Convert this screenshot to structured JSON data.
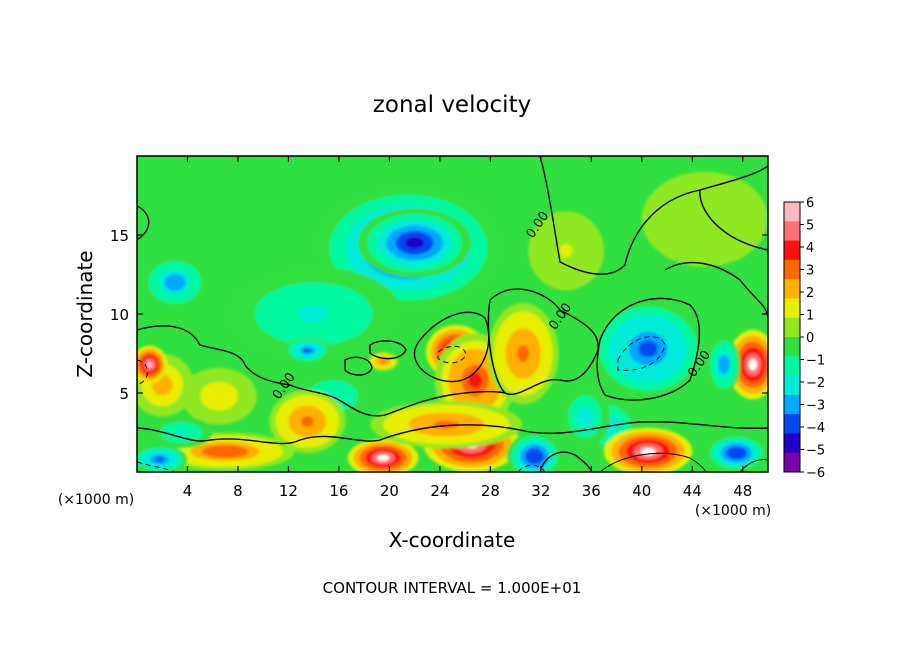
{
  "chart_data": {
    "type": "heatmap",
    "title": "zonal velocity",
    "xlabel": "X-coordinate",
    "ylabel": "Z-coordinate",
    "x_unit_left": "(×1000 m)",
    "x_unit_right": "(×1000 m)",
    "footer": "CONTOUR INTERVAL = 1.000E+01",
    "xlim": [
      0,
      50
    ],
    "ylim": [
      0,
      20
    ],
    "x_ticks": [
      4,
      8,
      12,
      16,
      20,
      24,
      28,
      32,
      36,
      40,
      44,
      48
    ],
    "y_ticks": [
      5,
      10,
      15
    ],
    "colorbar": {
      "min": -6,
      "max": 6,
      "ticks": [
        6,
        5,
        4,
        3,
        2,
        1,
        0,
        -1,
        -2,
        -3,
        -4,
        -5,
        -6
      ],
      "tick_labels": [
        "6",
        "5",
        "4",
        "3",
        "2",
        "1",
        "0",
        "−1",
        "−2",
        "−3",
        "−4",
        "−5",
        "−6"
      ],
      "colors": [
        "#7a00a8",
        "#1f00c8",
        "#0048f0",
        "#00a8ff",
        "#00ecd8",
        "#00f8a0",
        "#30e040",
        "#90e820",
        "#e8ee00",
        "#ffb000",
        "#ff6800",
        "#ff1010",
        "#ff7070",
        "#ffb8c0"
      ]
    },
    "contour_labels": [
      {
        "text": "0.00",
        "x": 32.0,
        "y": 15.5
      },
      {
        "text": "0.00",
        "x": 33.8,
        "y": 9.7
      },
      {
        "text": "0.00",
        "x": 44.8,
        "y": 6.7
      },
      {
        "text": "0.00",
        "x": 11.9,
        "y": 5.3
      }
    ],
    "blobs": [
      {
        "x": 21.5,
        "y": 14.2,
        "rx": 7.5,
        "ry": 4.0,
        "v": -4.5
      },
      {
        "x": 22.0,
        "y": 14.5,
        "rx": 4.5,
        "ry": 2.2,
        "v": -5.2
      },
      {
        "x": 3.0,
        "y": 12.0,
        "rx": 2.5,
        "ry": 1.6,
        "v": -3.5
      },
      {
        "x": 14.0,
        "y": 10.0,
        "rx": 7.0,
        "ry": 3.0,
        "v": -2.2
      },
      {
        "x": 13.5,
        "y": 7.7,
        "rx": 1.8,
        "ry": 0.8,
        "v": -4.0
      },
      {
        "x": 34.0,
        "y": 14.0,
        "rx": 3.0,
        "ry": 2.5,
        "v": 1.0
      },
      {
        "x": 45.0,
        "y": 16.0,
        "rx": 5.0,
        "ry": 3.0,
        "v": 0.5
      },
      {
        "x": 2.0,
        "y": 5.5,
        "rx": 2.5,
        "ry": 2.0,
        "v": 2.5
      },
      {
        "x": 1.0,
        "y": 6.8,
        "rx": 1.4,
        "ry": 1.2,
        "v": 6.0
      },
      {
        "x": 6.5,
        "y": 4.8,
        "rx": 3.0,
        "ry": 1.8,
        "v": 1.8
      },
      {
        "x": 25.3,
        "y": 7.6,
        "rx": 2.4,
        "ry": 1.7,
        "v": 8.0
      },
      {
        "x": 26.8,
        "y": 5.8,
        "rx": 3.2,
        "ry": 3.0,
        "v": 4.0
      },
      {
        "x": 31.0,
        "y": 6.8,
        "rx": 2.0,
        "ry": 2.3,
        "v": 8.0
      },
      {
        "x": 30.6,
        "y": 7.5,
        "rx": 2.8,
        "ry": 3.2,
        "v": 3.0
      },
      {
        "x": 40.5,
        "y": 7.5,
        "rx": 3.5,
        "ry": 2.3,
        "v": 8.0
      },
      {
        "x": 40.5,
        "y": 7.8,
        "rx": 4.6,
        "ry": 3.2,
        "v": -4.0
      },
      {
        "x": 48.8,
        "y": 6.8,
        "rx": 2.0,
        "ry": 2.2,
        "v": 8.0
      },
      {
        "x": 46.5,
        "y": 6.8,
        "rx": 1.3,
        "ry": 1.8,
        "v": -3.5
      },
      {
        "x": 19.5,
        "y": 7.0,
        "rx": 1.2,
        "ry": 0.6,
        "v": 3.0
      },
      {
        "x": 15.5,
        "y": 4.8,
        "rx": 3.0,
        "ry": 1.5,
        "v": -2.2
      },
      {
        "x": 13.8,
        "y": 3.2,
        "rx": 1.8,
        "ry": 1.3,
        "v": 8.0
      },
      {
        "x": 13.5,
        "y": 3.2,
        "rx": 3.0,
        "ry": 2.0,
        "v": 3.0
      },
      {
        "x": 7.0,
        "y": 1.3,
        "rx": 5.5,
        "ry": 1.2,
        "v": 3.5
      },
      {
        "x": 1.8,
        "y": 0.8,
        "rx": 2.2,
        "ry": 0.9,
        "v": -4.0
      },
      {
        "x": 3.5,
        "y": 2.5,
        "rx": 2.5,
        "ry": 1.0,
        "v": -2.0
      },
      {
        "x": 19.5,
        "y": 0.9,
        "rx": 2.8,
        "ry": 1.2,
        "v": 8.0
      },
      {
        "x": 26.5,
        "y": 1.8,
        "rx": 3.8,
        "ry": 1.8,
        "v": 8.0
      },
      {
        "x": 24.5,
        "y": 3.0,
        "rx": 6.0,
        "ry": 1.5,
        "v": 3.0
      },
      {
        "x": 31.5,
        "y": 1.0,
        "rx": 2.2,
        "ry": 1.5,
        "v": -4.5
      },
      {
        "x": 37.0,
        "y": 3.0,
        "rx": 2.5,
        "ry": 1.5,
        "v": -3.0
      },
      {
        "x": 40.5,
        "y": 1.3,
        "rx": 3.5,
        "ry": 1.5,
        "v": 8.0
      },
      {
        "x": 47.5,
        "y": 1.2,
        "rx": 2.5,
        "ry": 1.2,
        "v": -4.5
      },
      {
        "x": 35.5,
        "y": 3.5,
        "rx": 2.0,
        "ry": 2.0,
        "v": -2.5
      }
    ]
  }
}
